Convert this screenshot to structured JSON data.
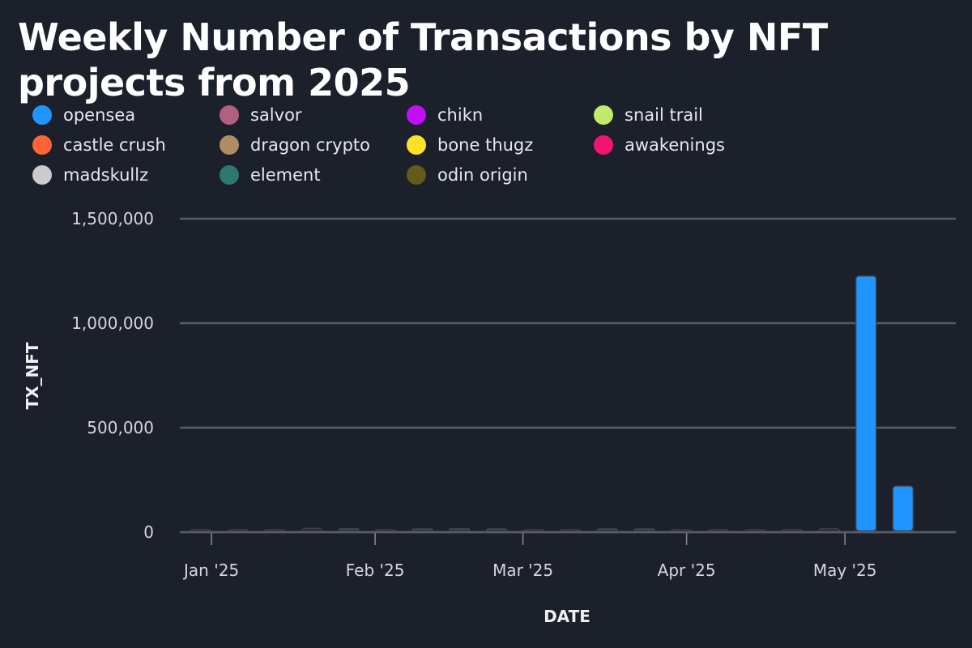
{
  "colors": {
    "background": "#1b202b",
    "grid": "#5a5d64",
    "axis": "#8a8c92",
    "small_bar": "#2b2d31",
    "small_bar_edge": "#3c3f45"
  },
  "chart_data": {
    "type": "bar",
    "title": "Weekly Number of Transactions by NFT projects from 2025",
    "xlabel": "DATE",
    "ylabel": "TX_NFT",
    "ylim": [
      0,
      1500000
    ],
    "yticks": [
      0,
      500000,
      1000000,
      1500000
    ],
    "ytick_labels": [
      "0",
      "500,000",
      "1,000,000",
      "1,500,000"
    ],
    "xlim": [
      "2024-12-26",
      "2025-05-22"
    ],
    "xticks": [
      "2025-01-01",
      "2025-02-01",
      "2025-03-01",
      "2025-04-01",
      "2025-05-01"
    ],
    "xtick_labels": [
      "Jan '25",
      "Feb '25",
      "Mar '25",
      "Apr '25",
      "May '25"
    ],
    "grid": true,
    "legend_position": "top-left",
    "legend": [
      {
        "name": "opensea",
        "color": "#1f96ff"
      },
      {
        "name": "salvor",
        "color": "#b0617f"
      },
      {
        "name": "chikn",
        "color": "#c20ff7"
      },
      {
        "name": "snail trail",
        "color": "#c0ea6c"
      },
      {
        "name": "castle crush",
        "color": "#ff6436"
      },
      {
        "name": "dragon crypto",
        "color": "#ae8c64"
      },
      {
        "name": "bone thugz",
        "color": "#ffe227"
      },
      {
        "name": "awakenings",
        "color": "#f01572"
      },
      {
        "name": "madskullz",
        "color": "#cbcbcb"
      },
      {
        "name": "element",
        "color": "#2f7870"
      },
      {
        "name": "odin origin",
        "color": "#635b18"
      }
    ],
    "x": [
      "2024-12-30",
      "2025-01-06",
      "2025-01-13",
      "2025-01-20",
      "2025-01-27",
      "2025-02-03",
      "2025-02-10",
      "2025-02-17",
      "2025-02-24",
      "2025-03-03",
      "2025-03-10",
      "2025-03-17",
      "2025-03-24",
      "2025-03-31",
      "2025-04-07",
      "2025-04-14",
      "2025-04-21",
      "2025-04-28",
      "2025-05-05",
      "2025-05-12"
    ],
    "series": [
      {
        "name": "opensea",
        "values": [
          0,
          0,
          0,
          0,
          0,
          0,
          0,
          0,
          0,
          0,
          0,
          0,
          0,
          0,
          0,
          0,
          0,
          0,
          1220000,
          215000
        ]
      },
      {
        "name": "salvor",
        "values": [
          0,
          0,
          0,
          0,
          5000,
          0,
          5000,
          5000,
          5000,
          0,
          0,
          5000,
          5000,
          0,
          0,
          0,
          0,
          0,
          0,
          0
        ]
      },
      {
        "name": "odin origin",
        "values": [
          12000,
          11000,
          11000,
          18000,
          12000,
          10000,
          11000,
          12000,
          11000,
          10000,
          10000,
          11000,
          11000,
          10000,
          10000,
          10000,
          12000,
          17000,
          6000,
          6000
        ]
      }
    ]
  }
}
